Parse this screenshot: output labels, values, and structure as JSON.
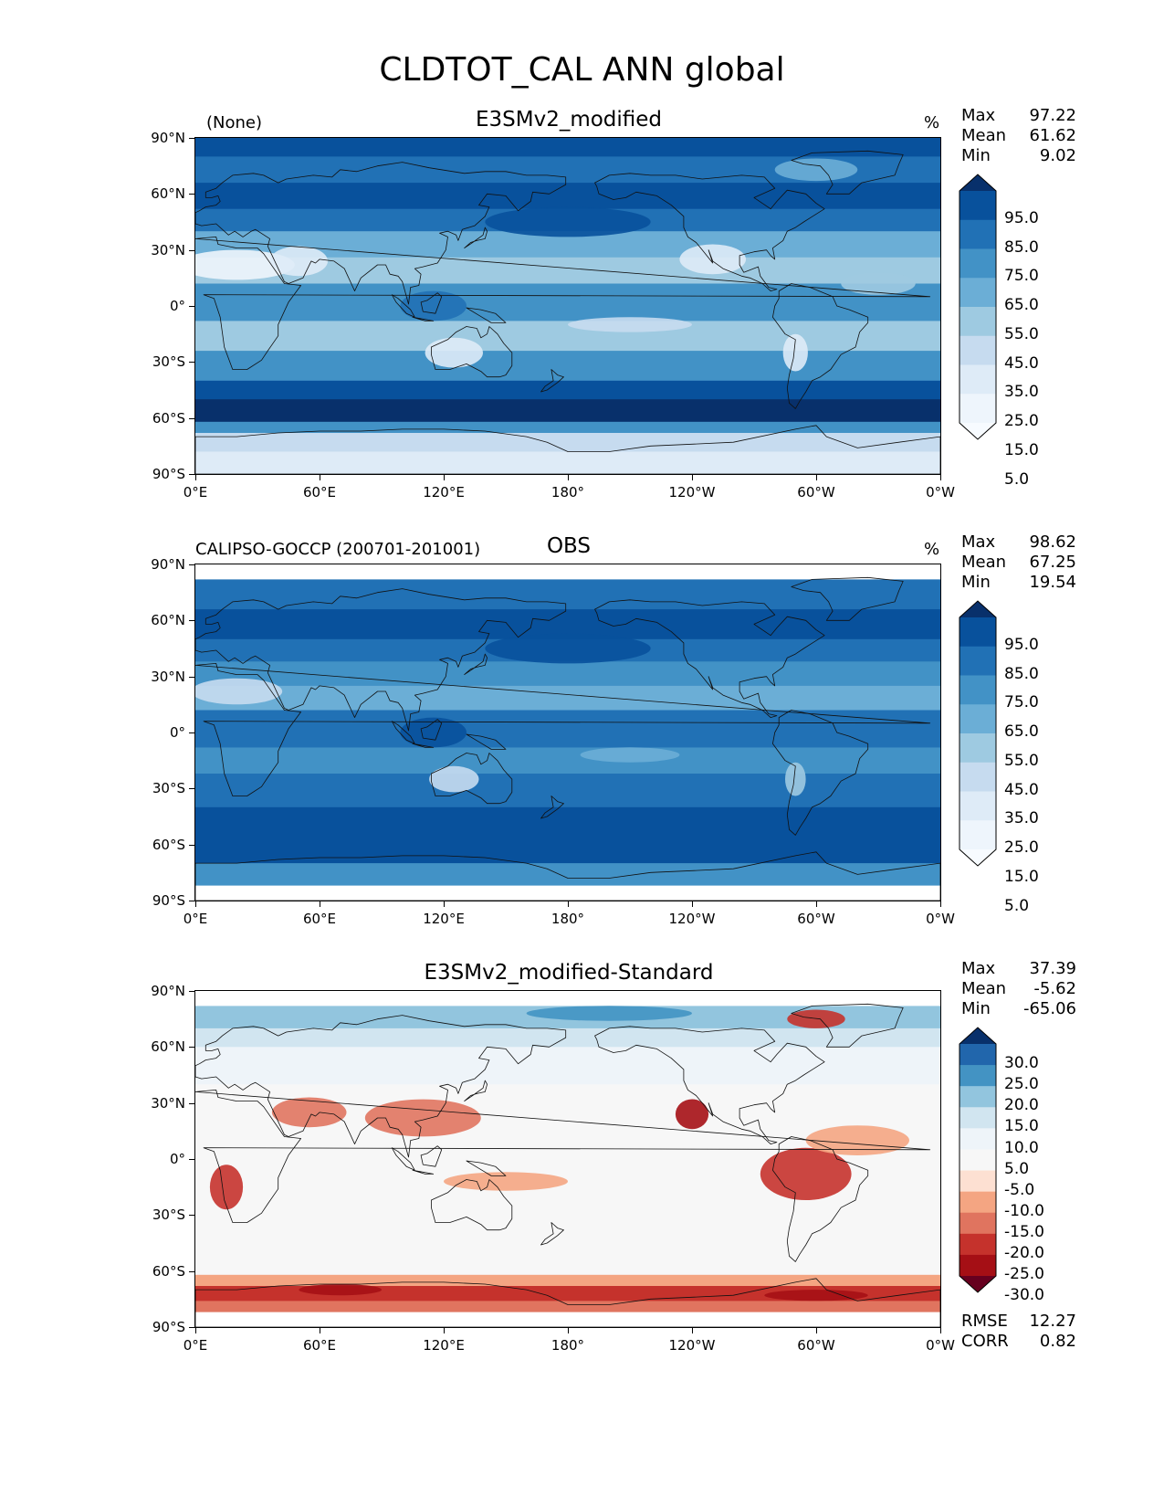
{
  "page_title": "CLDTOT_CAL ANN global",
  "axes": {
    "lat_ticks": [
      "90°N",
      "60°N",
      "30°N",
      "0°",
      "30°S",
      "60°S",
      "90°S"
    ],
    "lon_ticks": [
      "0°E",
      "60°E",
      "120°E",
      "180°",
      "120°W",
      "60°W",
      "0°W"
    ]
  },
  "panels": [
    {
      "left_title": "(None)",
      "main_title": "E3SMv2_modified",
      "units": "%",
      "stats": [
        {
          "label": "Max",
          "value": "97.22"
        },
        {
          "label": "Mean",
          "value": "61.62"
        },
        {
          "label": "Min",
          "value": "9.02"
        }
      ],
      "colorbar_labels": [
        "95.0",
        "85.0",
        "75.0",
        "65.0",
        "55.0",
        "45.0",
        "35.0",
        "25.0",
        "15.0",
        "5.0"
      ],
      "colorbar_colors": [
        "#08306b",
        "#08519c",
        "#2171b5",
        "#4292c6",
        "#6baed6",
        "#9ecae1",
        "#c6dbef",
        "#deebf7",
        "#eef5fc",
        "#f7fbff"
      ],
      "rmse_corr": []
    },
    {
      "left_title": "CALIPSO-GOCCP (200701-201001)",
      "main_title": "OBS",
      "units": "%",
      "stats": [
        {
          "label": "Max",
          "value": "98.62"
        },
        {
          "label": "Mean",
          "value": "67.25"
        },
        {
          "label": "Min",
          "value": "19.54"
        }
      ],
      "colorbar_labels": [
        "95.0",
        "85.0",
        "75.0",
        "65.0",
        "55.0",
        "45.0",
        "35.0",
        "25.0",
        "15.0",
        "5.0"
      ],
      "colorbar_colors": [
        "#08306b",
        "#08519c",
        "#2171b5",
        "#4292c6",
        "#6baed6",
        "#9ecae1",
        "#c6dbef",
        "#deebf7",
        "#eef5fc",
        "#f7fbff"
      ],
      "rmse_corr": []
    },
    {
      "left_title": "",
      "main_title": "E3SMv2_modified-Standard",
      "units": "",
      "stats": [
        {
          "label": "Max",
          "value": "37.39"
        },
        {
          "label": "Mean",
          "value": "-5.62"
        },
        {
          "label": "Min",
          "value": "-65.06"
        }
      ],
      "colorbar_labels": [
        "30.0",
        "25.0",
        "20.0",
        "15.0",
        "10.0",
        "5.0",
        "-5.0",
        "-10.0",
        "-15.0",
        "-20.0",
        "-25.0",
        "-30.0"
      ],
      "colorbar_colors": [
        "#08306b",
        "#2166ac",
        "#4393c3",
        "#92c5de",
        "#d1e5f0",
        "#eef4f9",
        "#f7f7f7",
        "#fde0d2",
        "#f4a582",
        "#e0745f",
        "#c5322c",
        "#a50f15",
        "#67001f"
      ],
      "rmse_corr": [
        {
          "label": "RMSE",
          "value": "12.27"
        },
        {
          "label": "CORR",
          "value": "0.82"
        }
      ]
    }
  ]
}
